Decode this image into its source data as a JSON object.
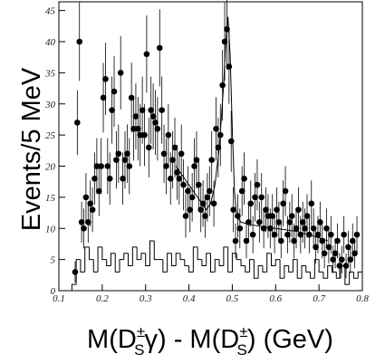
{
  "chart_data": [
    {
      "type": "scatter",
      "y_label": "Events/5 MeV",
      "x_label": [
        "M(D",
        "±",
        "S",
        "γ) - M(D",
        "±",
        "S",
        ")  (GeV)"
      ],
      "xlim": [
        0.1,
        0.8
      ],
      "ylim": [
        0,
        46.4
      ],
      "xticks": [
        0.1,
        0.2,
        0.3,
        0.4,
        0.5,
        0.6,
        0.7,
        0.8
      ],
      "yticks": [
        0,
        5,
        10,
        15,
        20,
        25,
        30,
        35,
        40,
        45
      ],
      "color": "#000000",
      "x": [
        0.1375,
        0.1425,
        0.1475,
        0.1525,
        0.1575,
        0.1625,
        0.1675,
        0.1725,
        0.1775,
        0.1825,
        0.1875,
        0.1925,
        0.1975,
        0.2025,
        0.2075,
        0.2125,
        0.2175,
        0.2225,
        0.2275,
        0.2325,
        0.2375,
        0.2425,
        0.2475,
        0.2525,
        0.2575,
        0.2625,
        0.2675,
        0.2725,
        0.2775,
        0.2825,
        0.2875,
        0.2925,
        0.2975,
        0.3025,
        0.3075,
        0.3125,
        0.3175,
        0.3225,
        0.3275,
        0.3325,
        0.3375,
        0.3425,
        0.3475,
        0.3525,
        0.3575,
        0.3625,
        0.3675,
        0.3725,
        0.3775,
        0.3825,
        0.3875,
        0.3925,
        0.3975,
        0.4025,
        0.4075,
        0.4125,
        0.4175,
        0.4225,
        0.4275,
        0.4325,
        0.4375,
        0.4425,
        0.4475,
        0.4525,
        0.4575,
        0.4625,
        0.4675,
        0.4725,
        0.4775,
        0.4825,
        0.4875,
        0.4925,
        0.4975,
        0.5025,
        0.5075,
        0.5125,
        0.5175,
        0.5225,
        0.5275,
        0.5325,
        0.5375,
        0.5425,
        0.5475,
        0.5525,
        0.5575,
        0.5625,
        0.5675,
        0.5725,
        0.5775,
        0.5825,
        0.5875,
        0.5925,
        0.5975,
        0.6025,
        0.6075,
        0.6125,
        0.6175,
        0.6225,
        0.6275,
        0.6325,
        0.6375,
        0.6425,
        0.6475,
        0.6525,
        0.6575,
        0.6625,
        0.6675,
        0.6725,
        0.6775,
        0.6825,
        0.6875,
        0.6925,
        0.6975,
        0.7025,
        0.7075,
        0.7125,
        0.7175,
        0.7225,
        0.7275,
        0.7325,
        0.7375,
        0.7425,
        0.7475,
        0.7525,
        0.7575,
        0.7625,
        0.7675,
        0.7725,
        0.7775,
        0.7825,
        0.7875
      ],
      "values": [
        3,
        27,
        40,
        11,
        10,
        15,
        11,
        14,
        13,
        18,
        20,
        16,
        20,
        31,
        34,
        20,
        18,
        29,
        32,
        21,
        22,
        35,
        18,
        21,
        22,
        20,
        31,
        26,
        28,
        26,
        25,
        29,
        25,
        38,
        23,
        29,
        28,
        27,
        26,
        39,
        29,
        22,
        20,
        25,
        18,
        21,
        23,
        19,
        18,
        22,
        17,
        12,
        16,
        13,
        15,
        20,
        21,
        17,
        13,
        14,
        12,
        15,
        16,
        21,
        14,
        26,
        23,
        25,
        33,
        40,
        42,
        36,
        24,
        13,
        8,
        12,
        10,
        16,
        18,
        8,
        11,
        14,
        9,
        15,
        17,
        11,
        15,
        10,
        13,
        12,
        10,
        12,
        9,
        13,
        11,
        8,
        14,
        16,
        9,
        11,
        12,
        8,
        10,
        13,
        9,
        11,
        10,
        12,
        9,
        14,
        10,
        7,
        9,
        11,
        8,
        6,
        10,
        7,
        9,
        5,
        6,
        8,
        4,
        5,
        9,
        4,
        7,
        5,
        8,
        6,
        9
      ],
      "errors": [
        1.7,
        5.2,
        6.3,
        3.3,
        3.2,
        3.9,
        3.3,
        3.7,
        3.6,
        4.2,
        4.5,
        4,
        4.5,
        5.6,
        5.8,
        4.5,
        4.2,
        5.4,
        5.7,
        4.6,
        4.7,
        5.9,
        4.2,
        4.6,
        4.7,
        4.5,
        5.6,
        5.1,
        5.3,
        5.1,
        5,
        5.4,
        5,
        6.2,
        4.8,
        5.4,
        5.3,
        5.2,
        5.1,
        6.2,
        5.4,
        4.7,
        4.5,
        5,
        4.2,
        4.6,
        4.8,
        4.4,
        4.2,
        4.7,
        4.1,
        3.5,
        4,
        3.6,
        3.9,
        4.5,
        4.6,
        4.1,
        3.6,
        3.7,
        3.5,
        3.9,
        4,
        4.6,
        3.7,
        5.1,
        4.8,
        5,
        5.7,
        6.3,
        6.5,
        6,
        4.9,
        3.6,
        2.8,
        3.5,
        3.2,
        4,
        4.2,
        2.8,
        3.3,
        3.7,
        3,
        3.9,
        4.1,
        3.3,
        3.9,
        3.2,
        3.6,
        3.5,
        3.2,
        3.5,
        3,
        3.6,
        3.3,
        2.8,
        3.7,
        4,
        3,
        3.3,
        3.5,
        2.8,
        3.2,
        3.6,
        3,
        3.3,
        3.2,
        3.5,
        3,
        3.7,
        3.2,
        2.6,
        3,
        3.3,
        2.8,
        2.4,
        3.2,
        2.6,
        3,
        2.2,
        2.4,
        2.8,
        2,
        2.2,
        3,
        2,
        2.6,
        2.2,
        2.8,
        2.4,
        3
      ]
    },
    {
      "type": "histogram",
      "color": "#000000",
      "bins": [
        0.13,
        0.14,
        0.15,
        0.16,
        0.17,
        0.18,
        0.19,
        0.2,
        0.21,
        0.22,
        0.23,
        0.24,
        0.25,
        0.26,
        0.27,
        0.28,
        0.29,
        0.3,
        0.31,
        0.32,
        0.33,
        0.34,
        0.35,
        0.36,
        0.37,
        0.38,
        0.39,
        0.4,
        0.41,
        0.42,
        0.43,
        0.44,
        0.45,
        0.46,
        0.47,
        0.48,
        0.49,
        0.5,
        0.51,
        0.52,
        0.53,
        0.54,
        0.55,
        0.56,
        0.57,
        0.58,
        0.59,
        0.6,
        0.61,
        0.62,
        0.63,
        0.64,
        0.65,
        0.66,
        0.67,
        0.68,
        0.69,
        0.7,
        0.71,
        0.72,
        0.73,
        0.74,
        0.75,
        0.76,
        0.77,
        0.78,
        0.79,
        0.8
      ],
      "values": [
        1,
        5,
        3,
        7,
        5,
        3,
        7,
        5,
        4,
        6,
        3,
        5,
        6,
        4,
        7,
        5,
        6,
        4,
        8,
        5,
        5,
        3,
        6,
        4,
        6,
        5,
        4,
        3,
        7,
        5,
        4,
        6,
        3,
        5,
        4,
        7,
        3,
        6,
        5,
        4,
        3,
        5,
        2,
        4,
        3,
        6,
        4,
        5,
        2,
        4,
        3,
        5,
        2,
        4,
        3,
        2,
        5,
        3,
        2,
        4,
        3,
        2,
        4,
        1,
        3,
        2,
        3
      ]
    },
    {
      "type": "line",
      "color": "#000000",
      "x": [
        0.37,
        0.39,
        0.41,
        0.43,
        0.44,
        0.45,
        0.46,
        0.47,
        0.48,
        0.485,
        0.49,
        0.495,
        0.5,
        0.505,
        0.51,
        0.52,
        0.55,
        0.6,
        0.65,
        0.7,
        0.72
      ],
      "values": [
        20,
        18,
        16,
        14,
        13,
        14,
        17,
        23,
        33,
        40,
        44,
        38,
        26,
        16,
        12,
        11,
        10.5,
        10,
        9.5,
        8.5,
        8
      ]
    }
  ]
}
